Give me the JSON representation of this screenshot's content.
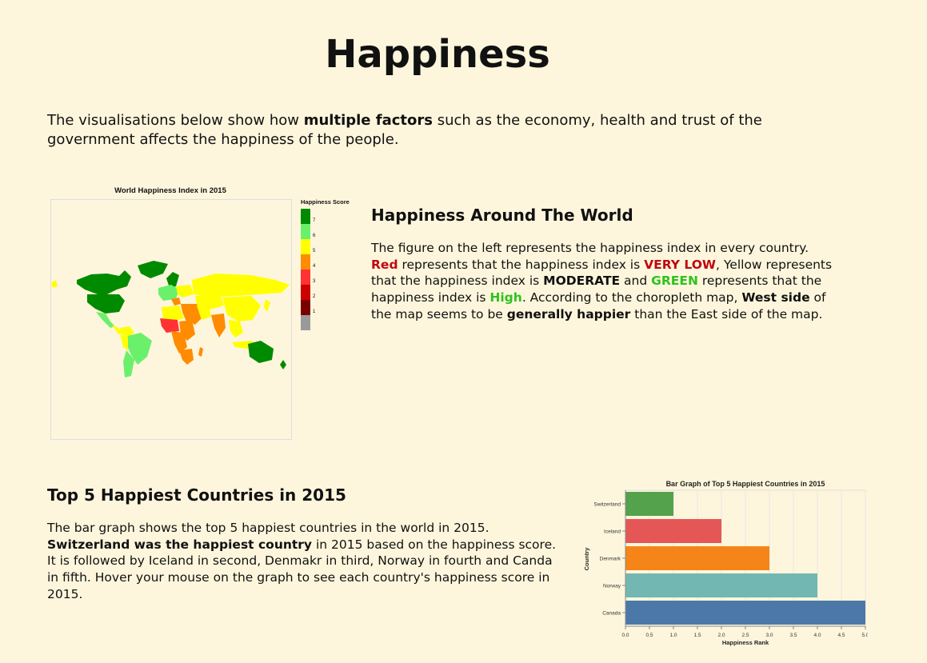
{
  "page": {
    "title": "Happiness",
    "intro": {
      "p1": "The visualisations below show how ",
      "b1": "multiple factors",
      "p2": " such as the economy, health and trust of the government affects the happiness of the people."
    }
  },
  "map": {
    "title": "World Happiness Index in 2015",
    "legend_title": "Happiness Score",
    "legend": [
      {
        "label": "7",
        "color": "#008a00"
      },
      {
        "label": "6",
        "color": "#6bf06b"
      },
      {
        "label": "5",
        "color": "#ffff00"
      },
      {
        "label": "4",
        "color": "#ff8c00"
      },
      {
        "label": "3",
        "color": "#ff3333"
      },
      {
        "label": "2",
        "color": "#cc0000"
      },
      {
        "label": "1",
        "color": "#7a0000"
      },
      {
        "label": "",
        "color": "#9a9a9a"
      }
    ]
  },
  "world_section": {
    "heading": "Happiness Around The World",
    "t1": "The figure on the left represents the happiness index in every country. ",
    "red": "Red",
    "t2": " represents that the happiness index is ",
    "very_low": "VERY LOW",
    "t3": ", Yellow represents that the happiness index is ",
    "moderate": "MODERATE",
    "t4": " and ",
    "green_word": "GREEN",
    "t5": " represents that the happiness index is ",
    "high": "High",
    "t6": ". According to the choropleth map, ",
    "west": "West side",
    "t7": " of the map seems to be ",
    "gen": "generally happier",
    "t8": " than the East side of the map."
  },
  "top5_section": {
    "heading": "Top 5 Happiest Countries in 2015",
    "t1": "The bar graph shows the top 5 happiest countries in the world in 2015. ",
    "b1": "Switzerland was the happiest country",
    "t2": " in 2015 based on the happiness score. It is followed by Iceland in second, Denmakr in third, Norway in fourth and Canda in fifth. Hover your mouse on the graph to see each country's happiness score in 2015."
  },
  "chart_data": {
    "type": "bar",
    "orientation": "horizontal",
    "title": "Bar Graph of Top 5 Happiest Countries in 2015",
    "xlabel": "Happiness Rank",
    "ylabel": "Country",
    "categories": [
      "Switzerland",
      "Iceland",
      "Denmark",
      "Norway",
      "Canada"
    ],
    "values": [
      1,
      2,
      3,
      4,
      5
    ],
    "colors": [
      "#54a24b",
      "#e45756",
      "#f58518",
      "#72b7b2",
      "#4c78a8"
    ],
    "xlim": [
      0,
      5
    ],
    "xticks": [
      "0.0",
      "0.5",
      "1.0",
      "1.5",
      "2.0",
      "2.5",
      "3.0",
      "3.5",
      "4.0",
      "4.5",
      "5.0"
    ],
    "grid": true
  }
}
